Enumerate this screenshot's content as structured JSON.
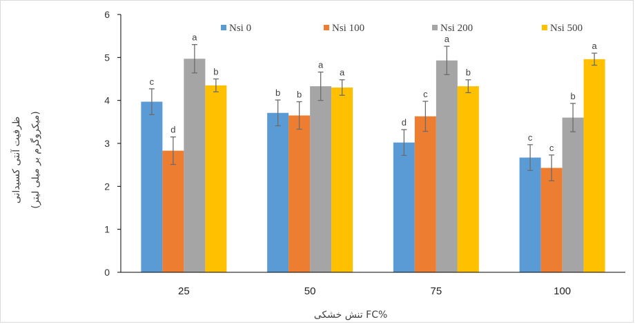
{
  "chart_data": {
    "type": "bar",
    "title": "",
    "xlabel": "تنش خشکی FC%",
    "ylabel_line1": "ظرفیت آنتی کسیدانی",
    "ylabel_line2": "(میکروگرم بر میلی لیتر)",
    "categories": [
      "25",
      "50",
      "75",
      "100"
    ],
    "ylim": [
      0,
      6
    ],
    "yticks": [
      0,
      1,
      2,
      3,
      4,
      5,
      6
    ],
    "grid": false,
    "legend_position": "top",
    "series": [
      {
        "name": "Nsi 0",
        "color": "#5b9bd5",
        "values": [
          3.97,
          3.71,
          3.02,
          2.67
        ],
        "errors": [
          0.3,
          0.3,
          0.3,
          0.3
        ],
        "letters": [
          "c",
          "b",
          "d",
          "c"
        ]
      },
      {
        "name": "Nsi 100",
        "color": "#ed7d31",
        "values": [
          2.83,
          3.65,
          3.63,
          2.43
        ],
        "errors": [
          0.32,
          0.32,
          0.35,
          0.3
        ],
        "letters": [
          "d",
          "b",
          "c",
          "c"
        ]
      },
      {
        "name": "Nsi 200",
        "color": "#a5a5a5",
        "values": [
          4.97,
          4.33,
          4.93,
          3.6
        ],
        "errors": [
          0.33,
          0.33,
          0.33,
          0.33
        ],
        "letters": [
          "a",
          "a",
          "a",
          "b"
        ]
      },
      {
        "name": "Nsi 500",
        "color": "#ffc000",
        "values": [
          4.35,
          4.3,
          4.33,
          4.96
        ],
        "errors": [
          0.15,
          0.18,
          0.15,
          0.14
        ],
        "letters": [
          "b",
          "a",
          "b",
          "a"
        ]
      }
    ]
  }
}
